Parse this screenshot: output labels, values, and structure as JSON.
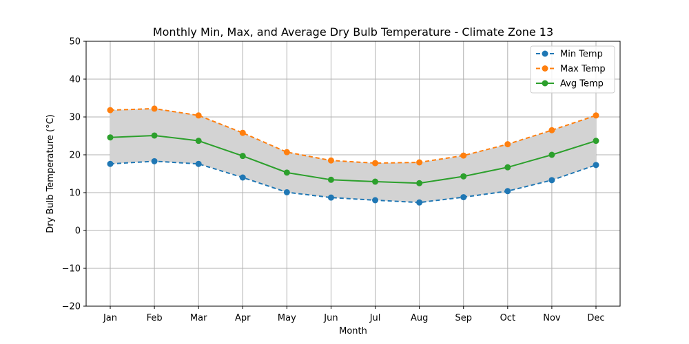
{
  "chart_data": {
    "type": "line",
    "title": "Monthly Min, Max, and Average Dry Bulb Temperature - Climate Zone 13",
    "xlabel": "Month",
    "ylabel": "Dry Bulb Temperature (°C)",
    "categories": [
      "Jan",
      "Feb",
      "Mar",
      "Apr",
      "May",
      "Jun",
      "Jul",
      "Aug",
      "Sep",
      "Oct",
      "Nov",
      "Dec"
    ],
    "ylim": [
      -20,
      50
    ],
    "yticks": [
      -20,
      -10,
      0,
      10,
      20,
      30,
      40,
      50
    ],
    "ytick_labels": [
      "−20",
      "−10",
      "0",
      "10",
      "20",
      "30",
      "40",
      "50"
    ],
    "grid": true,
    "legend_position": "top-right",
    "shaded_range": {
      "between": [
        "Min Temp",
        "Max Temp"
      ],
      "color": "#d3d3d3"
    },
    "series": [
      {
        "name": "Min Temp",
        "color": "#1f77b4",
        "line_style": "dashed",
        "marker": "circle",
        "values": [
          17.6,
          18.3,
          17.6,
          14.0,
          10.1,
          8.7,
          8.0,
          7.4,
          8.8,
          10.4,
          13.3,
          17.3
        ]
      },
      {
        "name": "Max Temp",
        "color": "#ff7f0e",
        "line_style": "dashed",
        "marker": "circle",
        "values": [
          31.8,
          32.2,
          30.4,
          25.8,
          20.7,
          18.5,
          17.8,
          18.0,
          19.8,
          22.8,
          26.5,
          30.4
        ]
      },
      {
        "name": "Avg Temp",
        "color": "#2ca02c",
        "line_style": "solid",
        "marker": "circle",
        "values": [
          24.6,
          25.1,
          23.7,
          19.7,
          15.3,
          13.4,
          12.9,
          12.5,
          14.3,
          16.7,
          20.0,
          23.7
        ]
      }
    ]
  }
}
